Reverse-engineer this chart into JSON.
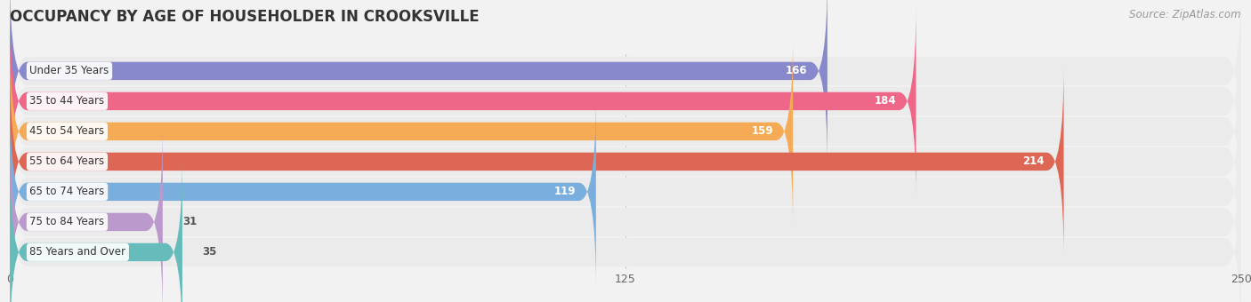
{
  "title": "OCCUPANCY BY AGE OF HOUSEHOLDER IN CROOKSVILLE",
  "source": "Source: ZipAtlas.com",
  "categories": [
    "Under 35 Years",
    "35 to 44 Years",
    "45 to 54 Years",
    "55 to 64 Years",
    "65 to 74 Years",
    "75 to 84 Years",
    "85 Years and Over"
  ],
  "values": [
    166,
    184,
    159,
    214,
    119,
    31,
    35
  ],
  "bar_colors": [
    "#8888cc",
    "#ee6688",
    "#f5aa55",
    "#dd6655",
    "#7aaedd",
    "#bb99cc",
    "#66bbbb"
  ],
  "bg_color": "#f2f2f2",
  "bar_bg_color": "#e0e0e0",
  "row_bg_color": "#ebebeb",
  "xlim": [
    0,
    250
  ],
  "xticks": [
    0,
    125,
    250
  ],
  "title_fontsize": 12,
  "label_fontsize": 8.5,
  "value_fontsize": 8.5,
  "source_fontsize": 8.5
}
